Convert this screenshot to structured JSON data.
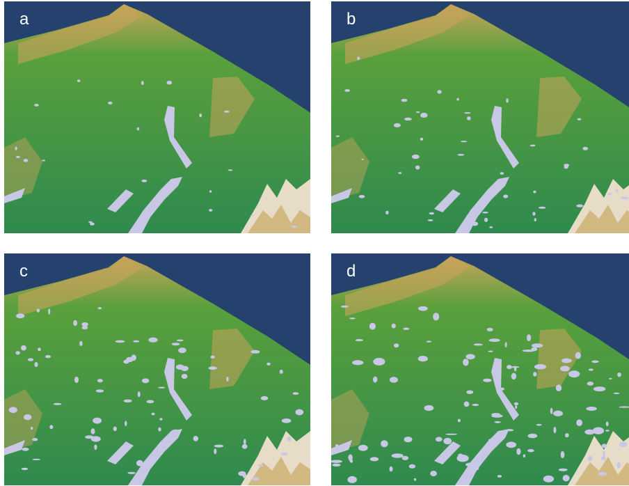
{
  "colors": {
    "sky": "#25416d",
    "terrain_low": "#2f8a4e",
    "terrain_mid": "#5aa03c",
    "terrain_high": "#c8a45a",
    "peak": "#e6dcc8",
    "water": "#c8c8e6"
  },
  "panels": [
    {
      "id": "a",
      "label": "a",
      "water_density": 0.12
    },
    {
      "id": "b",
      "label": "b",
      "water_density": 0.28
    },
    {
      "id": "c",
      "label": "c",
      "water_density": 0.5
    },
    {
      "id": "d",
      "label": "d",
      "water_density": 0.75
    }
  ]
}
